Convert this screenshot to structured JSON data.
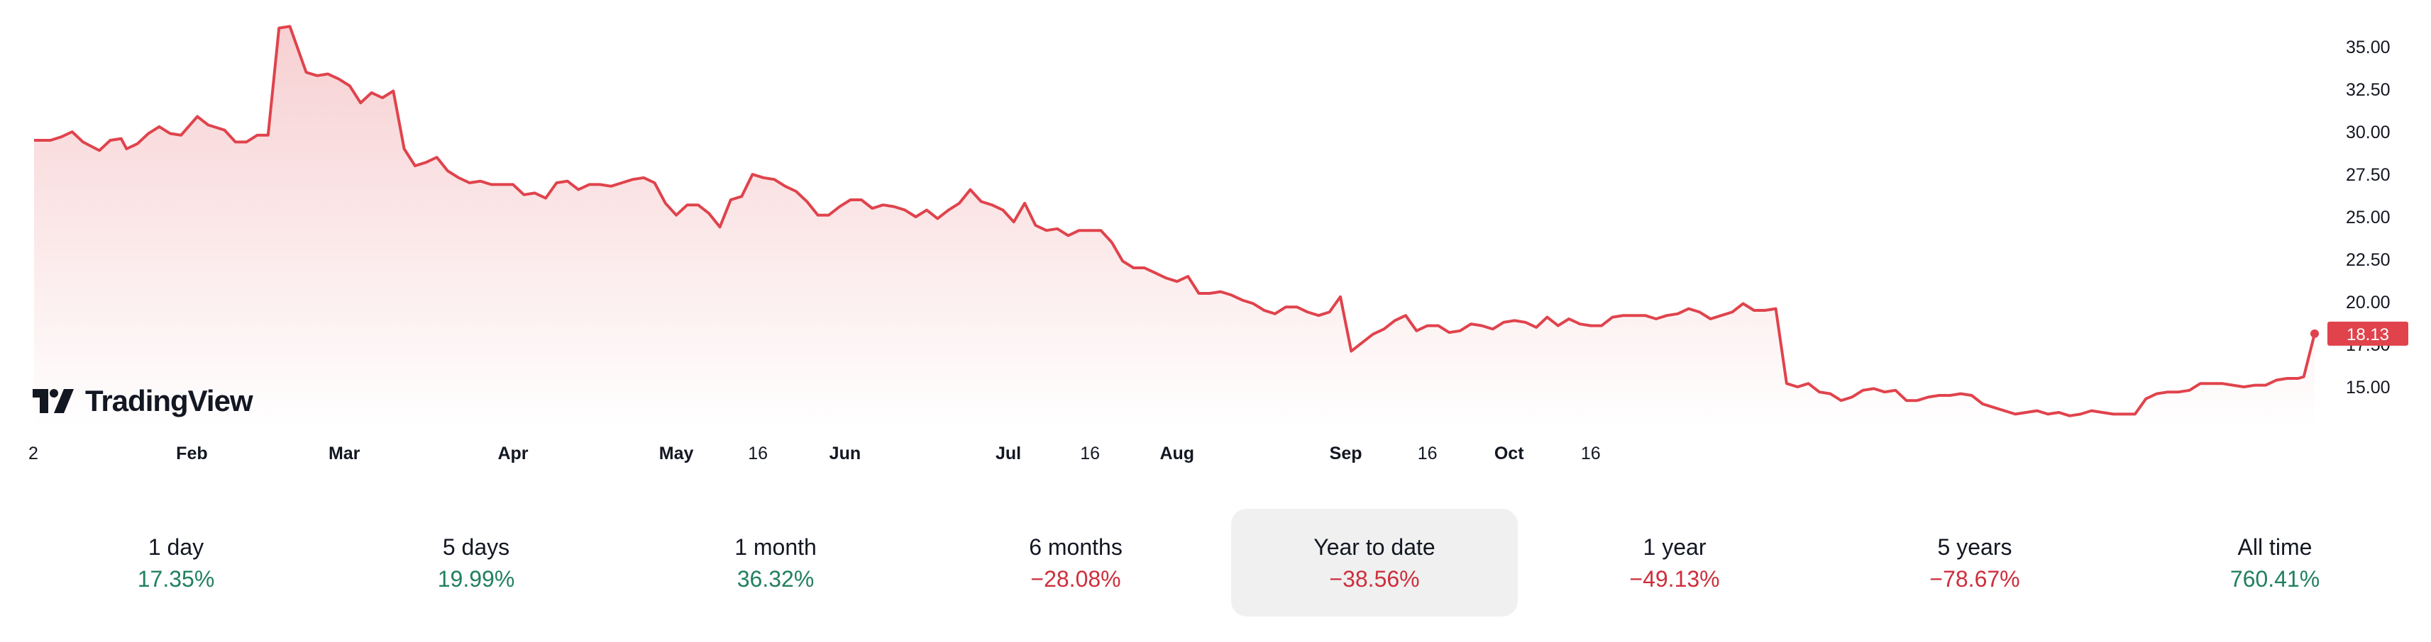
{
  "brand": {
    "name": "TradingView"
  },
  "colors": {
    "line": "#e0434c",
    "area_top": "#f7d0d2",
    "area_bottom": "#ffffff",
    "positive": "#22805e",
    "negative": "#cc2f3c",
    "active_bg": "#f0f0f0"
  },
  "periods": [
    {
      "label": "1 day",
      "value": "17.35%",
      "direction": "pos"
    },
    {
      "label": "5 days",
      "value": "19.99%",
      "direction": "pos"
    },
    {
      "label": "1 month",
      "value": "36.32%",
      "direction": "pos"
    },
    {
      "label": "6 months",
      "value": "−28.08%",
      "direction": "neg"
    },
    {
      "label": "Year to date",
      "value": "−38.56%",
      "direction": "neg",
      "active": true
    },
    {
      "label": "1 year",
      "value": "−49.13%",
      "direction": "neg"
    },
    {
      "label": "5 years",
      "value": "−78.67%",
      "direction": "neg"
    },
    {
      "label": "All time",
      "value": "760.41%",
      "direction": "pos"
    }
  ],
  "chart_data": {
    "type": "area",
    "title": "",
    "xlabel": "",
    "ylabel": "",
    "ylim": [
      12.5,
      37.0
    ],
    "y_ticks": [
      "35.00",
      "32.50",
      "30.00",
      "27.50",
      "25.00",
      "22.50",
      "20.00",
      "17.50",
      "15.00"
    ],
    "x_ticks": [
      {
        "label": "2",
        "day": 0,
        "bold": false
      },
      {
        "label": "Feb",
        "day": 29,
        "bold": true
      },
      {
        "label": "Mar",
        "day": 57,
        "bold": true
      },
      {
        "label": "Apr",
        "day": 88,
        "bold": true
      },
      {
        "label": "May",
        "day": 118,
        "bold": true
      },
      {
        "label": "16",
        "day": 133,
        "bold": false
      },
      {
        "label": "Jun",
        "day": 149,
        "bold": true
      },
      {
        "label": "Jul",
        "day": 179,
        "bold": true
      },
      {
        "label": "16",
        "day": 194,
        "bold": false
      },
      {
        "label": "Aug",
        "day": 210,
        "bold": true
      },
      {
        "label": "Sep",
        "day": 241,
        "bold": true
      },
      {
        "label": "16",
        "day": 256,
        "bold": false
      },
      {
        "label": "Oct",
        "day": 271,
        "bold": true
      },
      {
        "label": "16",
        "day": 286,
        "bold": false
      }
    ],
    "last_price_label": "18.13",
    "series": [
      {
        "points": [
          [
            0,
            29.5
          ],
          [
            3,
            29.5
          ],
          [
            5,
            29.7
          ],
          [
            7,
            30.0
          ],
          [
            9,
            29.4
          ],
          [
            12,
            28.9
          ],
          [
            14,
            29.5
          ],
          [
            16,
            29.6
          ],
          [
            17,
            29.0
          ],
          [
            19,
            29.3
          ],
          [
            21,
            29.9
          ],
          [
            23,
            30.3
          ],
          [
            25,
            29.9
          ],
          [
            27,
            29.8
          ],
          [
            30,
            30.9
          ],
          [
            32,
            30.4
          ],
          [
            35,
            30.1
          ],
          [
            37,
            29.4
          ],
          [
            39,
            29.4
          ],
          [
            41,
            29.8
          ],
          [
            43,
            29.8
          ],
          [
            45,
            36.1
          ],
          [
            47,
            36.2
          ],
          [
            50,
            33.5
          ],
          [
            52,
            33.3
          ],
          [
            54,
            33.4
          ],
          [
            56,
            33.1
          ],
          [
            58,
            32.7
          ],
          [
            60,
            31.7
          ],
          [
            62,
            32.3
          ],
          [
            64,
            32.0
          ],
          [
            66,
            32.4
          ],
          [
            68,
            29.0
          ],
          [
            70,
            28.0
          ],
          [
            72,
            28.2
          ],
          [
            74,
            28.5
          ],
          [
            76,
            27.7
          ],
          [
            78,
            27.3
          ],
          [
            80,
            27.0
          ],
          [
            82,
            27.1
          ],
          [
            84,
            26.9
          ],
          [
            86,
            26.9
          ],
          [
            88,
            26.9
          ],
          [
            90,
            26.3
          ],
          [
            92,
            26.4
          ],
          [
            94,
            26.1
          ],
          [
            96,
            27.0
          ],
          [
            98,
            27.1
          ],
          [
            100,
            26.6
          ],
          [
            102,
            26.9
          ],
          [
            104,
            26.9
          ],
          [
            106,
            26.8
          ],
          [
            108,
            27.0
          ],
          [
            110,
            27.2
          ],
          [
            112,
            27.3
          ],
          [
            114,
            27.0
          ],
          [
            116,
            25.8
          ],
          [
            118,
            25.1
          ],
          [
            120,
            25.7
          ],
          [
            122,
            25.7
          ],
          [
            124,
            25.2
          ],
          [
            126,
            24.4
          ],
          [
            128,
            26.0
          ],
          [
            130,
            26.2
          ],
          [
            132,
            27.5
          ],
          [
            134,
            27.3
          ],
          [
            136,
            27.2
          ],
          [
            138,
            26.8
          ],
          [
            140,
            26.5
          ],
          [
            142,
            25.9
          ],
          [
            144,
            25.1
          ],
          [
            146,
            25.1
          ],
          [
            148,
            25.6
          ],
          [
            150,
            26.0
          ],
          [
            152,
            26.0
          ],
          [
            154,
            25.5
          ],
          [
            156,
            25.7
          ],
          [
            158,
            25.6
          ],
          [
            160,
            25.4
          ],
          [
            162,
            25.0
          ],
          [
            164,
            25.4
          ],
          [
            166,
            24.9
          ],
          [
            168,
            25.4
          ],
          [
            170,
            25.8
          ],
          [
            172,
            26.6
          ],
          [
            174,
            25.9
          ],
          [
            176,
            25.7
          ],
          [
            178,
            25.4
          ],
          [
            180,
            24.7
          ],
          [
            182,
            25.8
          ],
          [
            184,
            24.5
          ],
          [
            186,
            24.2
          ],
          [
            188,
            24.3
          ],
          [
            190,
            23.9
          ],
          [
            192,
            24.2
          ],
          [
            194,
            24.2
          ],
          [
            196,
            24.2
          ],
          [
            198,
            23.5
          ],
          [
            200,
            22.4
          ],
          [
            202,
            22.0
          ],
          [
            204,
            22.0
          ],
          [
            206,
            21.7
          ],
          [
            208,
            21.4
          ],
          [
            210,
            21.2
          ],
          [
            212,
            21.5
          ],
          [
            214,
            20.5
          ],
          [
            216,
            20.5
          ],
          [
            218,
            20.6
          ],
          [
            220,
            20.4
          ],
          [
            222,
            20.1
          ],
          [
            224,
            19.9
          ],
          [
            226,
            19.5
          ],
          [
            228,
            19.3
          ],
          [
            230,
            19.7
          ],
          [
            232,
            19.7
          ],
          [
            234,
            19.4
          ],
          [
            236,
            19.2
          ],
          [
            238,
            19.4
          ],
          [
            240,
            20.3
          ],
          [
            242,
            17.1
          ],
          [
            244,
            17.6
          ],
          [
            246,
            18.1
          ],
          [
            248,
            18.4
          ],
          [
            250,
            18.9
          ],
          [
            252,
            19.2
          ],
          [
            254,
            18.3
          ],
          [
            256,
            18.6
          ],
          [
            258,
            18.6
          ],
          [
            260,
            18.2
          ],
          [
            262,
            18.3
          ],
          [
            264,
            18.7
          ],
          [
            266,
            18.6
          ],
          [
            268,
            18.4
          ],
          [
            270,
            18.8
          ],
          [
            272,
            18.9
          ],
          [
            274,
            18.8
          ],
          [
            276,
            18.5
          ],
          [
            278,
            19.1
          ],
          [
            280,
            18.6
          ],
          [
            282,
            19.0
          ],
          [
            284,
            18.7
          ],
          [
            286,
            18.6
          ],
          [
            288,
            18.6
          ],
          [
            290,
            19.1
          ],
          [
            292,
            19.2
          ],
          [
            294,
            19.2
          ],
          [
            296,
            19.2
          ],
          [
            298,
            19.0
          ],
          [
            300,
            19.2
          ],
          [
            302,
            19.3
          ],
          [
            304,
            19.6
          ],
          [
            306,
            19.4
          ],
          [
            308,
            19.0
          ],
          [
            310,
            19.2
          ],
          [
            312,
            19.4
          ],
          [
            314,
            19.9
          ],
          [
            316,
            19.5
          ],
          [
            318,
            19.5
          ],
          [
            320,
            19.6
          ],
          [
            322,
            15.2
          ],
          [
            324,
            15.0
          ],
          [
            326,
            15.2
          ],
          [
            328,
            14.7
          ],
          [
            330,
            14.6
          ],
          [
            332,
            14.2
          ],
          [
            334,
            14.4
          ],
          [
            336,
            14.8
          ],
          [
            338,
            14.9
          ],
          [
            340,
            14.7
          ],
          [
            342,
            14.8
          ],
          [
            344,
            14.2
          ],
          [
            346,
            14.2
          ],
          [
            348,
            14.4
          ],
          [
            350,
            14.5
          ],
          [
            352,
            14.5
          ],
          [
            354,
            14.6
          ],
          [
            356,
            14.5
          ],
          [
            358,
            14.0
          ],
          [
            360,
            13.8
          ],
          [
            362,
            13.6
          ],
          [
            364,
            13.4
          ],
          [
            366,
            13.5
          ],
          [
            368,
            13.6
          ],
          [
            370,
            13.4
          ],
          [
            372,
            13.5
          ],
          [
            374,
            13.3
          ],
          [
            376,
            13.4
          ],
          [
            378,
            13.6
          ],
          [
            380,
            13.5
          ],
          [
            382,
            13.4
          ],
          [
            384,
            13.4
          ],
          [
            386,
            13.4
          ],
          [
            388,
            14.3
          ],
          [
            390,
            14.6
          ],
          [
            392,
            14.7
          ],
          [
            394,
            14.7
          ],
          [
            396,
            14.8
          ],
          [
            398,
            15.2
          ],
          [
            400,
            15.2
          ],
          [
            402,
            15.2
          ],
          [
            404,
            15.1
          ],
          [
            406,
            15.0
          ],
          [
            408,
            15.1
          ],
          [
            410,
            15.1
          ],
          [
            412,
            15.4
          ],
          [
            414,
            15.5
          ],
          [
            416,
            15.5
          ],
          [
            417,
            15.6
          ],
          [
            419,
            18.13
          ]
        ]
      }
    ]
  }
}
